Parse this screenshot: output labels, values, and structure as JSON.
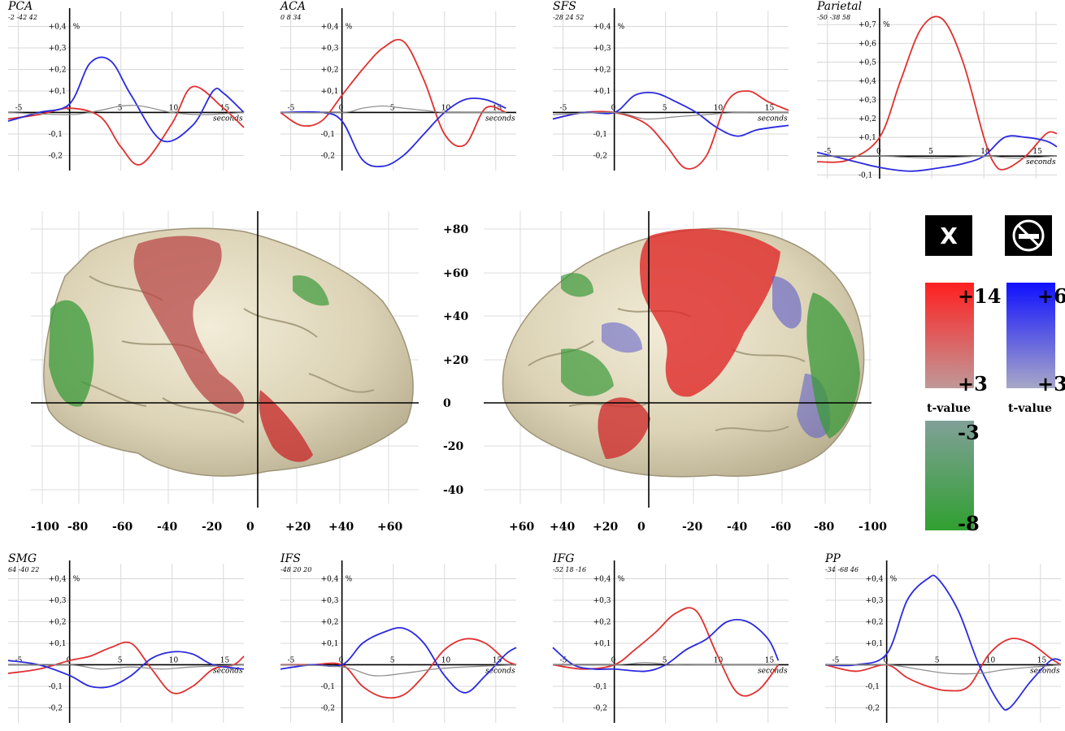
{
  "chart_data": [
    {
      "type": "line",
      "id": "pca",
      "title": "PCA",
      "subtitle": "-2 -42 42",
      "unit": "%",
      "xlabel": "seconds",
      "xlim": [
        -6,
        17
      ],
      "ylim": [
        -0.27,
        0.47
      ],
      "yticks": [
        "+0,4",
        "+0,3",
        "+0,2",
        "+0,1",
        "-0,1",
        "-0,2"
      ],
      "xticks": [
        "-5",
        "0",
        "5",
        "10",
        "15"
      ],
      "series": [
        {
          "color": "#e03030",
          "x": [
            -6,
            -3,
            0,
            3,
            5,
            7,
            10,
            12,
            15,
            17
          ],
          "y": [
            -0.03,
            -0.01,
            0.02,
            -0.02,
            -0.16,
            -0.24,
            -0.05,
            0.12,
            0.02,
            -0.07
          ]
        },
        {
          "color": "#2a2ae0",
          "x": [
            -6,
            -3,
            0,
            2,
            4,
            6,
            9,
            12,
            14,
            15,
            17
          ],
          "y": [
            -0.04,
            0.0,
            0.04,
            0.23,
            0.24,
            0.08,
            -0.13,
            -0.06,
            0.1,
            0.09,
            0.0
          ]
        },
        {
          "color": "#888888",
          "x": [
            -6,
            0,
            3,
            5,
            7,
            10,
            13,
            17
          ],
          "y": [
            0.0,
            -0.01,
            0.01,
            0.03,
            0.03,
            0.0,
            -0.01,
            0.0
          ]
        }
      ]
    },
    {
      "type": "line",
      "id": "aca",
      "title": "ACA",
      "subtitle": "0 8 34",
      "unit": "%",
      "xlabel": "seconds",
      "xlim": [
        -6,
        17
      ],
      "ylim": [
        -0.27,
        0.47
      ],
      "yticks": [
        "+0,4",
        "+0,3",
        "+0,2",
        "+0,1",
        "-0,1",
        "-0,2"
      ],
      "xticks": [
        "-5",
        "0",
        "5",
        "10",
        "15"
      ],
      "series": [
        {
          "color": "#e03030",
          "x": [
            -6,
            -4,
            -2,
            0,
            2,
            4,
            6,
            8,
            10,
            12,
            14,
            16
          ],
          "y": [
            0.0,
            -0.06,
            -0.04,
            0.08,
            0.2,
            0.3,
            0.33,
            0.15,
            -0.1,
            -0.15,
            0.02,
            0.0
          ]
        },
        {
          "color": "#2a2ae0",
          "x": [
            -6,
            -2,
            0,
            2,
            4,
            6,
            8,
            10,
            12,
            14,
            16
          ],
          "y": [
            0.0,
            0.0,
            -0.04,
            -0.22,
            -0.25,
            -0.2,
            -0.1,
            0.0,
            0.06,
            0.06,
            0.02
          ]
        },
        {
          "color": "#888888",
          "x": [
            -6,
            0,
            2,
            4,
            6,
            8,
            10,
            12,
            16
          ],
          "y": [
            0.0,
            0.0,
            0.02,
            0.03,
            0.02,
            0.01,
            0.0,
            0.0,
            0.0
          ]
        }
      ]
    },
    {
      "type": "line",
      "id": "sfs",
      "title": "SFS",
      "subtitle": "-28 24 52",
      "unit": "%",
      "xlabel": "seconds",
      "xlim": [
        -6,
        17
      ],
      "ylim": [
        -0.27,
        0.47
      ],
      "yticks": [
        "+0,4",
        "+0,3",
        "+0,2",
        "+0,1",
        "-0,1",
        "-0,2"
      ],
      "xticks": [
        "-5",
        "0",
        "5",
        "10",
        "15"
      ],
      "series": [
        {
          "color": "#e03030",
          "x": [
            -6,
            -3,
            0,
            3,
            5,
            7,
            9,
            11,
            13,
            15,
            17
          ],
          "y": [
            -0.03,
            0.0,
            0.0,
            -0.05,
            -0.15,
            -0.26,
            -0.2,
            0.05,
            0.1,
            0.05,
            0.01
          ]
        },
        {
          "color": "#2a2ae0",
          "x": [
            -6,
            -3,
            0,
            2,
            4,
            6,
            8,
            10,
            12,
            14,
            17
          ],
          "y": [
            -0.03,
            0.0,
            0.0,
            0.08,
            0.09,
            0.05,
            0.0,
            -0.07,
            -0.11,
            -0.08,
            -0.06
          ]
        },
        {
          "color": "#888888",
          "x": [
            -6,
            0,
            3,
            6,
            9,
            12,
            17
          ],
          "y": [
            -0.01,
            0.0,
            -0.03,
            -0.02,
            -0.01,
            0.0,
            0.0
          ]
        }
      ]
    },
    {
      "type": "line",
      "id": "parietal",
      "title": "Parietal",
      "subtitle": "-50 -38 58",
      "unit": "%",
      "xlabel": "seconds",
      "xlim": [
        -6,
        17
      ],
      "ylim": [
        -0.12,
        0.77
      ],
      "yticks": [
        "+0,7",
        "+0,6",
        "+0,5",
        "+0,4",
        "+0,3",
        "+0,2",
        "+0,1",
        "-0,1"
      ],
      "xticks": [
        "-5",
        "0",
        "5",
        "10",
        "15"
      ],
      "series": [
        {
          "color": "#e03030",
          "x": [
            -6,
            -3,
            0,
            2,
            4,
            6,
            8,
            10,
            11,
            12,
            14,
            16,
            17
          ],
          "y": [
            -0.03,
            -0.02,
            0.1,
            0.4,
            0.68,
            0.73,
            0.5,
            0.1,
            -0.04,
            -0.07,
            0.0,
            0.12,
            0.12
          ]
        },
        {
          "color": "#2a2ae0",
          "x": [
            -6,
            -3,
            0,
            3,
            6,
            8,
            10,
            12,
            14,
            16,
            17
          ],
          "y": [
            0.02,
            -0.02,
            -0.06,
            -0.08,
            -0.06,
            -0.04,
            0.0,
            0.1,
            0.1,
            0.08,
            0.05
          ]
        },
        {
          "color": "#888888",
          "x": [
            -6,
            0,
            5,
            10,
            13,
            17
          ],
          "y": [
            0.0,
            0.0,
            -0.01,
            0.0,
            -0.01,
            0.0
          ]
        }
      ]
    },
    {
      "type": "line",
      "id": "smg",
      "title": "SMG",
      "subtitle": "64 -40 22",
      "unit": "%",
      "xlabel": "seconds",
      "xlim": [
        -6,
        17
      ],
      "ylim": [
        -0.27,
        0.47
      ],
      "yticks": [
        "+0,4",
        "+0,3",
        "+0,2",
        "+0,1",
        "-0,1",
        "-0,2"
      ],
      "xticks": [
        "-5",
        "0",
        "5",
        "10",
        "15"
      ],
      "series": [
        {
          "color": "#e03030",
          "x": [
            -6,
            -3,
            0,
            2,
            4,
            6,
            8,
            10,
            12,
            14,
            16,
            17
          ],
          "y": [
            -0.04,
            -0.02,
            0.02,
            0.04,
            0.08,
            0.1,
            -0.02,
            -0.13,
            -0.1,
            -0.02,
            0.0,
            0.04
          ]
        },
        {
          "color": "#2a2ae0",
          "x": [
            -6,
            -3,
            0,
            2,
            4,
            6,
            8,
            10,
            12,
            14,
            17
          ],
          "y": [
            0.02,
            0.0,
            -0.05,
            -0.1,
            -0.1,
            -0.05,
            0.03,
            0.06,
            0.05,
            0.0,
            -0.02
          ]
        },
        {
          "color": "#888888",
          "x": [
            -6,
            0,
            3,
            6,
            9,
            12,
            17
          ],
          "y": [
            0.0,
            0.0,
            -0.02,
            -0.01,
            -0.02,
            -0.01,
            0.0
          ]
        }
      ]
    },
    {
      "type": "line",
      "id": "ifs",
      "title": "IFS",
      "subtitle": "-48 20 20",
      "unit": "%",
      "xlabel": "seconds",
      "xlim": [
        -6,
        17
      ],
      "ylim": [
        -0.27,
        0.47
      ],
      "yticks": [
        "+0,4",
        "+0,3",
        "+0,2",
        "+0,1",
        "-0,1",
        "-0,2"
      ],
      "xticks": [
        "-5",
        "0",
        "5",
        "10",
        "15"
      ],
      "series": [
        {
          "color": "#e03030",
          "x": [
            -6,
            -3,
            0,
            2,
            4,
            6,
            8,
            10,
            12,
            14,
            16,
            17
          ],
          "y": [
            0.0,
            0.0,
            0.0,
            -0.1,
            -0.15,
            -0.14,
            -0.05,
            0.07,
            0.12,
            0.1,
            0.02,
            0.0
          ]
        },
        {
          "color": "#2a2ae0",
          "x": [
            -6,
            -3,
            0,
            2,
            4,
            6,
            8,
            10,
            12,
            14,
            16,
            17
          ],
          "y": [
            -0.02,
            0.0,
            0.0,
            0.1,
            0.15,
            0.17,
            0.1,
            -0.05,
            -0.13,
            -0.05,
            0.05,
            0.08
          ]
        },
        {
          "color": "#888888",
          "x": [
            -6,
            0,
            3,
            6,
            9,
            12,
            17
          ],
          "y": [
            0.0,
            -0.01,
            -0.05,
            -0.04,
            -0.02,
            -0.01,
            0.0
          ]
        }
      ]
    },
    {
      "type": "line",
      "id": "ifg",
      "title": "IFG",
      "subtitle": "-52 18 -16",
      "unit": "%",
      "xlabel": "seconds",
      "xlim": [
        -6,
        17
      ],
      "ylim": [
        -0.27,
        0.47
      ],
      "yticks": [
        "+0,4",
        "+0,3",
        "+0,2",
        "+0,1",
        "-0,1",
        "-0,2"
      ],
      "xticks": [
        "-5",
        "0",
        "5",
        "10",
        "15"
      ],
      "series": [
        {
          "color": "#e03030",
          "x": [
            -6,
            -3,
            0,
            2,
            4,
            6,
            8,
            10,
            12,
            14,
            16
          ],
          "y": [
            0.0,
            -0.02,
            0.0,
            0.07,
            0.15,
            0.24,
            0.25,
            0.05,
            -0.13,
            -0.12,
            0.0
          ]
        },
        {
          "color": "#2a2ae0",
          "x": [
            -6,
            -4,
            -2,
            0,
            3,
            5,
            7,
            9,
            11,
            13,
            15,
            16
          ],
          "y": [
            0.08,
            0.0,
            -0.02,
            -0.02,
            -0.03,
            0.0,
            0.07,
            0.12,
            0.2,
            0.2,
            0.12,
            0.02
          ]
        },
        {
          "color": "#888888",
          "x": [
            -6,
            0,
            3,
            6,
            9,
            12,
            16
          ],
          "y": [
            0.0,
            0.0,
            0.01,
            0.0,
            0.0,
            0.0,
            0.0
          ]
        }
      ]
    },
    {
      "type": "line",
      "id": "pp",
      "title": "PP",
      "subtitle": "-34 -68 46",
      "unit": "%",
      "xlabel": "seconds",
      "xlim": [
        -6,
        17
      ],
      "ylim": [
        -0.27,
        0.47
      ],
      "yticks": [
        "+0,4",
        "+0,3",
        "+0,2",
        "+0,1",
        "-0,1",
        "-0,2"
      ],
      "xticks": [
        "-5",
        "0",
        "5",
        "10",
        "15"
      ],
      "series": [
        {
          "color": "#e03030",
          "x": [
            -6,
            -3,
            0,
            2,
            4,
            6,
            8,
            10,
            12,
            14,
            16,
            17
          ],
          "y": [
            0.0,
            -0.03,
            0.0,
            -0.06,
            -0.1,
            -0.12,
            -0.1,
            0.05,
            0.12,
            0.1,
            0.03,
            0.0
          ]
        },
        {
          "color": "#2a2ae0",
          "x": [
            -6,
            -3,
            0,
            2,
            4,
            5,
            7,
            9,
            11,
            12,
            14,
            16,
            17
          ],
          "y": [
            0.0,
            0.0,
            0.05,
            0.3,
            0.4,
            0.4,
            0.25,
            0.0,
            -0.18,
            -0.2,
            -0.08,
            0.02,
            0.02
          ]
        },
        {
          "color": "#888888",
          "x": [
            -6,
            0,
            3,
            6,
            9,
            12,
            17
          ],
          "y": [
            0.0,
            0.0,
            -0.02,
            -0.04,
            -0.04,
            -0.02,
            0.0
          ]
        }
      ]
    }
  ],
  "brain_axes": {
    "y_ticks": [
      "+80",
      "+60",
      "+40",
      "+20",
      "0",
      "-20",
      "-40"
    ],
    "left_x_ticks": [
      "-100",
      "-80",
      "-60",
      "-40",
      "-20",
      "0",
      "+20",
      "+40",
      "+60"
    ],
    "right_x_ticks": [
      "+60",
      "+40",
      "+20",
      "0",
      "-20",
      "-40",
      "-60",
      "-80",
      "-100"
    ]
  },
  "legend": {
    "left_icon_label": "X",
    "red": {
      "max": "+14",
      "min": "+3",
      "color_hi": "#ff2020",
      "color_lo": "#b89090"
    },
    "blue": {
      "max": "+6",
      "min": "+3",
      "color_hi": "#1010ff",
      "color_lo": "#a0a0c0"
    },
    "green": {
      "max": "-3",
      "min": "-8",
      "color_hi": "#80a098",
      "color_lo": "#30a030"
    },
    "t_value": "t-value"
  }
}
